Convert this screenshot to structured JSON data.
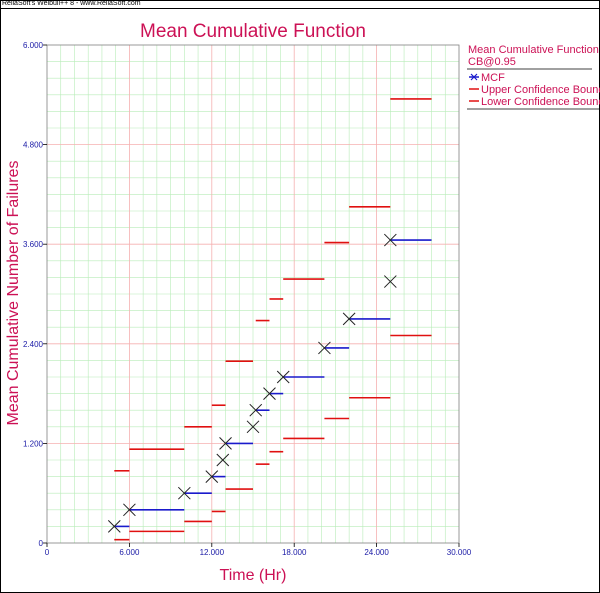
{
  "caption": "ReliaSoft's Weibull++ 8 - www.ReliaSoft.com",
  "chart_data": {
    "type": "scatter",
    "title": "Mean Cumulative Function",
    "xlabel": "Time (Hr)",
    "ylabel": "Mean Cumulative Number of Failures",
    "xlim": [
      0,
      30000
    ],
    "ylim": [
      0,
      6
    ],
    "xticks": [
      "0",
      "6.000",
      "12.000",
      "18.000",
      "24.000",
      "30.000"
    ],
    "yticks": [
      "0",
      "1.200",
      "2.400",
      "3.600",
      "4.800",
      "6.000"
    ],
    "grid": true,
    "legend": {
      "title": "Mean Cumulative Function",
      "subtitle": "CB@0.95",
      "placement": "right",
      "entries": [
        "MCF",
        "Upper Confidence Bounds",
        "Lower Confidence Bounds"
      ]
    },
    "mcf_points": [
      [
        4900,
        0.2
      ],
      [
        6000,
        0.4
      ],
      [
        10000,
        0.6
      ],
      [
        12000,
        0.8
      ],
      [
        12800,
        1.0
      ],
      [
        13000,
        1.2
      ],
      [
        15000,
        1.4
      ],
      [
        15200,
        1.6
      ],
      [
        16200,
        1.8
      ],
      [
        17200,
        2.0
      ],
      [
        20200,
        2.35
      ],
      [
        22000,
        2.7
      ],
      [
        25000,
        3.15
      ],
      [
        25000,
        3.65
      ]
    ],
    "mcf_steps": [
      [
        4900,
        6000,
        0.2
      ],
      [
        6000,
        10000,
        0.4
      ],
      [
        10000,
        12000,
        0.6
      ],
      [
        12000,
        13000,
        0.8
      ],
      [
        13000,
        15000,
        1.2
      ],
      [
        15200,
        16200,
        1.6
      ],
      [
        16200,
        17200,
        1.8
      ],
      [
        17200,
        20200,
        2.0
      ],
      [
        20200,
        22000,
        2.35
      ],
      [
        22000,
        25000,
        2.7
      ],
      [
        25000,
        28000,
        3.65
      ]
    ],
    "upper_bounds": [
      [
        4900,
        6000,
        0.87
      ],
      [
        6000,
        10000,
        1.13
      ],
      [
        10000,
        12000,
        1.4
      ],
      [
        12000,
        13000,
        1.66
      ],
      [
        13000,
        15000,
        2.19
      ],
      [
        15200,
        16200,
        2.68
      ],
      [
        16200,
        17200,
        2.94
      ],
      [
        17200,
        20200,
        3.18
      ],
      [
        20200,
        22000,
        3.62
      ],
      [
        22000,
        25000,
        4.05
      ],
      [
        25000,
        28000,
        5.35
      ]
    ],
    "lower_bounds": [
      [
        4900,
        6000,
        0.04
      ],
      [
        6000,
        10000,
        0.14
      ],
      [
        10000,
        12000,
        0.26
      ],
      [
        12000,
        13000,
        0.38
      ],
      [
        13000,
        15000,
        0.65
      ],
      [
        15200,
        16200,
        0.95
      ],
      [
        16200,
        17200,
        1.1
      ],
      [
        17200,
        20200,
        1.26
      ],
      [
        20200,
        22000,
        1.5
      ],
      [
        22000,
        25000,
        1.75
      ],
      [
        25000,
        28000,
        2.5
      ]
    ],
    "colors": {
      "mcf": "#1a1acc",
      "bounds": "#e01010",
      "major_grid": "#f5b0b0",
      "minor_grid": "#b8ecb8",
      "text": "#cc1155",
      "tick": "#1a1aa6"
    }
  }
}
